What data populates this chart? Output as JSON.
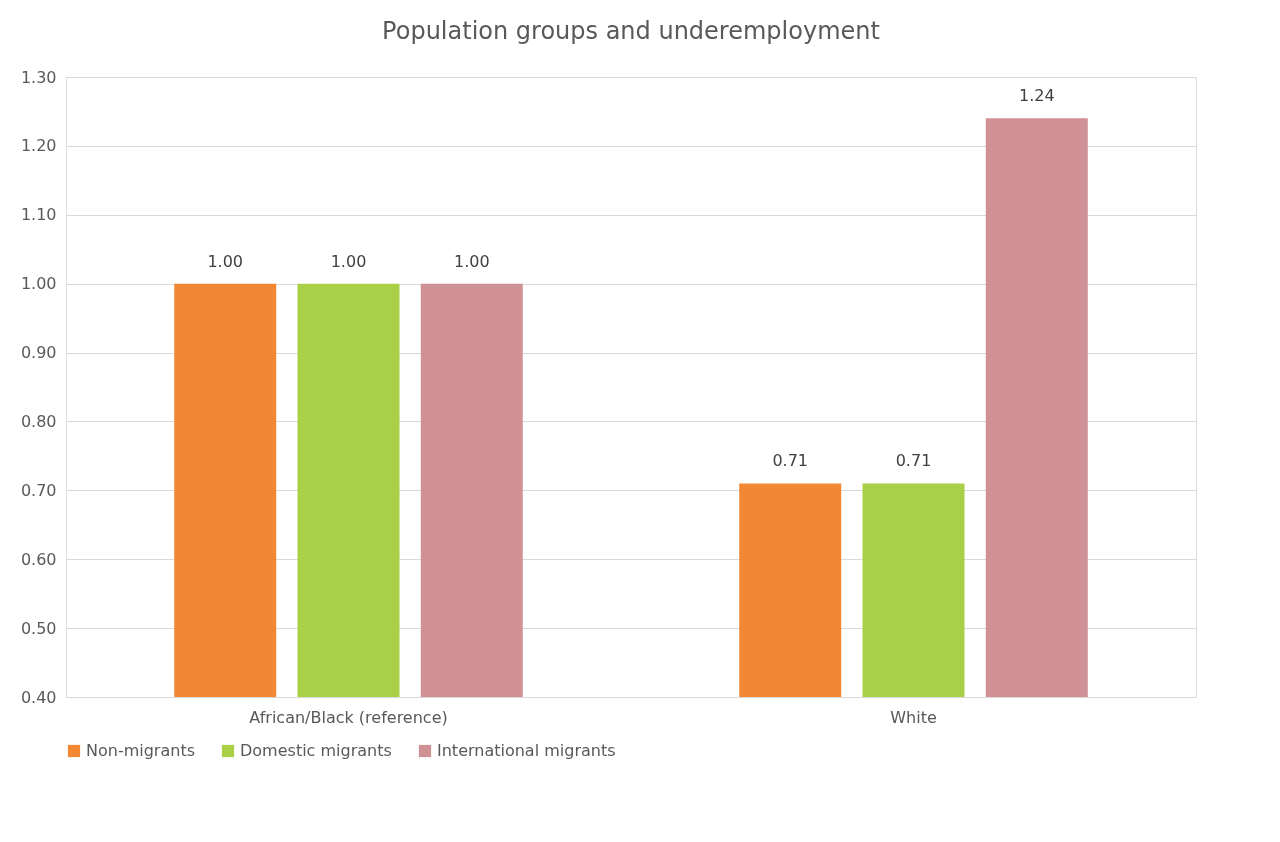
{
  "chart_data": {
    "type": "bar",
    "title": "Population groups and underemployment",
    "categories": [
      "African/Black (reference)",
      "White"
    ],
    "series": [
      {
        "name": "Non-migrants",
        "color": "#f28834",
        "values": [
          1.0,
          0.71
        ],
        "value_labels": [
          "1.00",
          "0.71"
        ]
      },
      {
        "name": "Domestic migrants",
        "color": "#a9d046",
        "values": [
          1.0,
          0.71
        ],
        "value_labels": [
          "1.00",
          "0.71"
        ]
      },
      {
        "name": "International migrants",
        "color": "#cf9196",
        "values": [
          1.0,
          1.24
        ],
        "value_labels": [
          "1.00",
          "1.24"
        ]
      }
    ],
    "ylim": [
      0.4,
      1.3
    ],
    "yticks": [
      {
        "value": 0.4,
        "label": "0.40"
      },
      {
        "value": 0.5,
        "label": "0.50"
      },
      {
        "value": 0.6,
        "label": "0.60"
      },
      {
        "value": 0.7,
        "label": "0.70"
      },
      {
        "value": 0.8,
        "label": "0.80"
      },
      {
        "value": 0.9,
        "label": "0.90"
      },
      {
        "value": 1.0,
        "label": "1.00"
      },
      {
        "value": 1.1,
        "label": "1.10"
      },
      {
        "value": 1.2,
        "label": "1.20"
      },
      {
        "value": 1.3,
        "label": "1.30"
      }
    ],
    "grid": "y",
    "legend": "bottom"
  }
}
